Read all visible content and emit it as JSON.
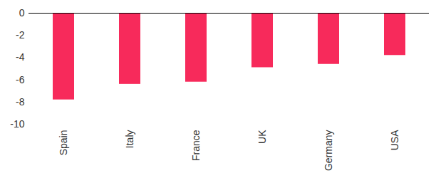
{
  "chart_data": {
    "type": "bar",
    "categories": [
      "Spain",
      "Italy",
      "France",
      "UK",
      "Germany",
      "USA"
    ],
    "values": [
      -7.8,
      -6.4,
      -6.2,
      -4.9,
      -4.6,
      -3.8
    ],
    "color": "#f72a5b",
    "ylim": [
      -10,
      0
    ],
    "yticks": [
      -10,
      -8,
      -6,
      -4,
      -2,
      0
    ],
    "grid": false
  }
}
